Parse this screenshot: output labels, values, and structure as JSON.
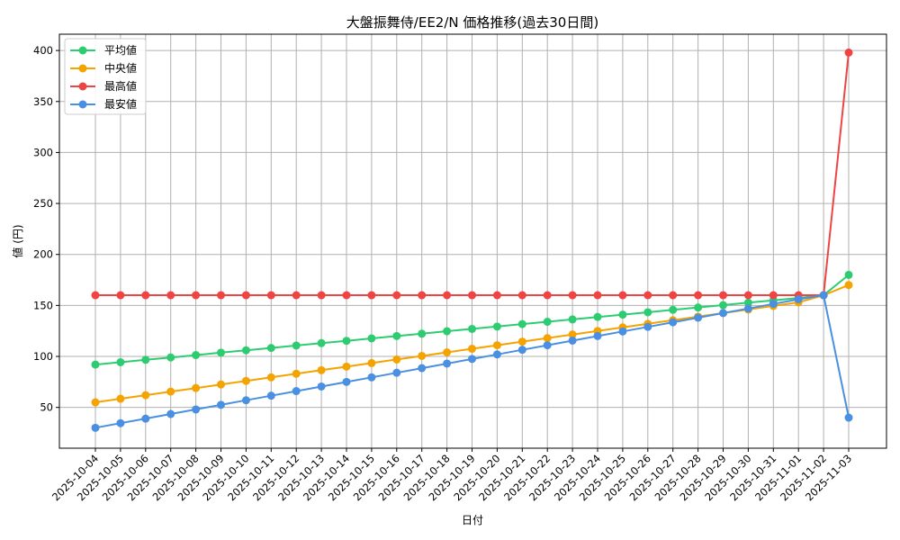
{
  "chart_data": {
    "type": "line",
    "title": "大盤振舞侍/EE2/N 価格推移(過去30日間)",
    "xlabel": "日付",
    "ylabel": "値 (円)",
    "ylim": [
      10,
      416
    ],
    "yticks": [
      50,
      100,
      150,
      200,
      250,
      300,
      350,
      400
    ],
    "grid": true,
    "legend_position": "top-left",
    "categories": [
      "2025-10-04",
      "2025-10-05",
      "2025-10-06",
      "2025-10-07",
      "2025-10-08",
      "2025-10-09",
      "2025-10-10",
      "2025-10-11",
      "2025-10-12",
      "2025-10-13",
      "2025-10-14",
      "2025-10-15",
      "2025-10-16",
      "2025-10-17",
      "2025-10-18",
      "2025-10-19",
      "2025-10-20",
      "2025-10-21",
      "2025-10-22",
      "2025-10-23",
      "2025-10-24",
      "2025-10-25",
      "2025-10-26",
      "2025-10-27",
      "2025-10-28",
      "2025-10-29",
      "2025-10-30",
      "2025-10-31",
      "2025-11-01",
      "2025-11-02",
      "2025-11-03"
    ],
    "series": [
      {
        "name": "平均値",
        "color": "#2ecc71",
        "values": [
          92,
          94.3,
          96.7,
          99,
          101.3,
          103.7,
          106,
          108.3,
          110.7,
          113,
          115.3,
          117.7,
          120,
          122.3,
          124.7,
          127,
          129.3,
          131.7,
          134,
          136.3,
          138.7,
          141,
          143.3,
          145.7,
          148,
          150.3,
          152.7,
          155,
          157.3,
          160,
          180
        ]
      },
      {
        "name": "中央値",
        "color": "#f5a300",
        "values": [
          55,
          58.5,
          62,
          65.5,
          69,
          72.5,
          76,
          79.5,
          83,
          86.5,
          90,
          93.5,
          97,
          100.5,
          104,
          107.5,
          111,
          114.5,
          118,
          121.5,
          125,
          128.5,
          132,
          135.5,
          139,
          142.5,
          146,
          149.5,
          153,
          160,
          170
        ]
      },
      {
        "name": "最高値",
        "color": "#ef4444",
        "values": [
          160,
          160,
          160,
          160,
          160,
          160,
          160,
          160,
          160,
          160,
          160,
          160,
          160,
          160,
          160,
          160,
          160,
          160,
          160,
          160,
          160,
          160,
          160,
          160,
          160,
          160,
          160,
          160,
          160,
          160,
          398
        ]
      },
      {
        "name": "最安値",
        "color": "#4a90e2",
        "values": [
          30,
          34.5,
          39,
          43.5,
          48,
          52.5,
          57,
          61.5,
          66,
          70.5,
          75,
          79.5,
          84,
          88.5,
          93,
          97.5,
          102,
          106.5,
          111,
          115.5,
          120,
          124.5,
          129,
          133.5,
          138,
          142.5,
          147,
          151.5,
          156,
          160,
          40
        ]
      }
    ]
  }
}
